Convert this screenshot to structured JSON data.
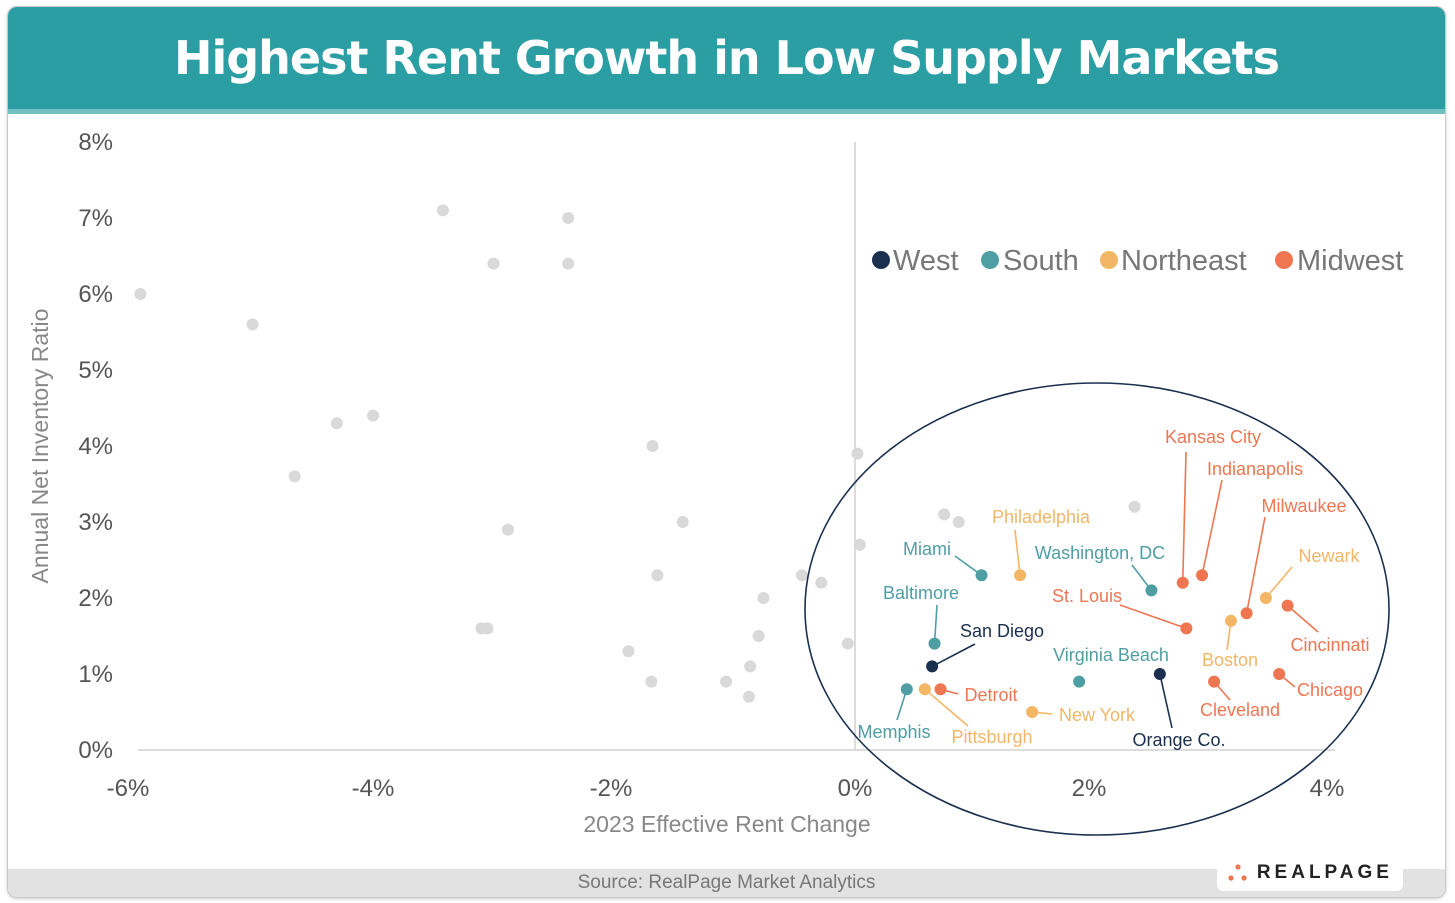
{
  "title": "Highest Rent Growth in Low Supply Markets",
  "source": "Source: RealPage Market Analytics",
  "logo": "REALPAGE",
  "chart_data": {
    "type": "scatter",
    "title": "Highest Rent Growth in Low Supply Markets",
    "xlabel": "2023 Effective Rent Change",
    "ylabel": "Annual Net Inventory Ratio",
    "xlim": [
      -6,
      4
    ],
    "ylim": [
      0,
      8
    ],
    "xticks": [
      "-6%",
      "-4%",
      "-2%",
      "0%",
      "2%",
      "4%"
    ],
    "yticks": [
      "0%",
      "1%",
      "2%",
      "3%",
      "4%",
      "5%",
      "6%",
      "7%",
      "8%"
    ],
    "legend": {
      "placement": "right",
      "entries": [
        {
          "name": "West",
          "color": "#1b2f4f"
        },
        {
          "name": "South",
          "color": "#4e9ea4"
        },
        {
          "name": "Northeast",
          "color": "#f3b665"
        },
        {
          "name": "Midwest",
          "color": "#ee7752"
        }
      ]
    },
    "other_color": "#d9d9d9",
    "other_points": [
      [
        -3.42,
        7.1
      ],
      [
        -2.38,
        7.0
      ],
      [
        -3.0,
        6.4
      ],
      [
        -2.38,
        6.4
      ],
      [
        -5.93,
        6.0
      ],
      [
        -5.0,
        5.6
      ],
      [
        -4.3,
        4.3
      ],
      [
        -4.0,
        4.4
      ],
      [
        -4.65,
        3.6
      ],
      [
        -1.68,
        4.0
      ],
      [
        -2.88,
        2.9
      ],
      [
        -1.43,
        3.0
      ],
      [
        0.02,
        3.9
      ],
      [
        0.74,
        3.1
      ],
      [
        0.86,
        3.0
      ],
      [
        2.32,
        3.2
      ],
      [
        0.04,
        2.7
      ],
      [
        -1.64,
        2.3
      ],
      [
        -0.44,
        2.3
      ],
      [
        -0.28,
        2.2
      ],
      [
        -0.76,
        2.0
      ],
      [
        -3.1,
        1.6
      ],
      [
        -3.05,
        1.6
      ],
      [
        -0.8,
        1.5
      ],
      [
        -1.88,
        1.3
      ],
      [
        -0.06,
        1.4
      ],
      [
        -0.87,
        1.1
      ],
      [
        -1.69,
        0.9
      ],
      [
        -1.07,
        0.9
      ],
      [
        -0.88,
        0.7
      ]
    ],
    "markets": [
      {
        "name": "Kansas City",
        "region": "Midwest",
        "x": 2.72,
        "y": 2.2
      },
      {
        "name": "Indianapolis",
        "region": "Midwest",
        "x": 2.88,
        "y": 2.3
      },
      {
        "name": "Milwaukee",
        "region": "Midwest",
        "x": 3.25,
        "y": 1.8
      },
      {
        "name": "Philadelphia",
        "region": "Northeast",
        "x": 1.37,
        "y": 2.3
      },
      {
        "name": "Newark",
        "region": "Northeast",
        "x": 3.41,
        "y": 2.0
      },
      {
        "name": "Miami",
        "region": "South",
        "x": 1.05,
        "y": 2.3
      },
      {
        "name": "Washington, DC",
        "region": "South",
        "x": 2.46,
        "y": 2.1
      },
      {
        "name": "St. Louis",
        "region": "Midwest",
        "x": 2.75,
        "y": 1.6
      },
      {
        "name": "Baltimore",
        "region": "South",
        "x": 0.66,
        "y": 1.4
      },
      {
        "name": "San Diego",
        "region": "West",
        "x": 0.64,
        "y": 1.1
      },
      {
        "name": "Cincinnati",
        "region": "Midwest",
        "x": 3.59,
        "y": 1.9
      },
      {
        "name": "Virginia Beach",
        "region": "South",
        "x": 1.86,
        "y": 0.9
      },
      {
        "name": "Boston",
        "region": "Northeast",
        "x": 3.12,
        "y": 1.7
      },
      {
        "name": "Chicago",
        "region": "Midwest",
        "x": 3.52,
        "y": 1.0
      },
      {
        "name": "Detroit",
        "region": "Midwest",
        "x": 0.71,
        "y": 0.8
      },
      {
        "name": "Cleveland",
        "region": "Midwest",
        "x": 2.98,
        "y": 0.9
      },
      {
        "name": "New York",
        "region": "Northeast",
        "x": 1.47,
        "y": 0.5
      },
      {
        "name": "Memphis",
        "region": "South",
        "x": 0.43,
        "y": 0.8
      },
      {
        "name": "Pittsburgh",
        "region": "Northeast",
        "x": 0.58,
        "y": 0.8
      },
      {
        "name": "Orange Co.",
        "region": "West",
        "x": 2.53,
        "y": 1.0
      }
    ]
  }
}
